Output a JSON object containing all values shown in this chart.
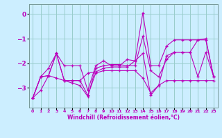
{
  "xlabel": "Windchill (Refroidissement éolien,°C)",
  "background_color": "#cceeff",
  "line_color": "#bb00bb",
  "grid_color": "#99cccc",
  "ylim": [
    -3.8,
    0.4
  ],
  "xlim": [
    -0.5,
    23.5
  ],
  "yticks": [
    0,
    -1,
    -2,
    -3
  ],
  "xticks": [
    0,
    1,
    2,
    3,
    4,
    5,
    6,
    7,
    8,
    9,
    10,
    11,
    12,
    13,
    14,
    15,
    16,
    17,
    18,
    19,
    20,
    21,
    22,
    23
  ],
  "series": [
    [
      -3.4,
      -3.1,
      -2.5,
      -1.6,
      -2.7,
      -2.7,
      -2.7,
      -3.3,
      -2.4,
      -2.3,
      -2.3,
      -2.3,
      -2.3,
      -2.3,
      -2.6,
      -3.2,
      -2.9,
      -2.7,
      -2.7,
      -2.7,
      -2.7,
      -2.7,
      -2.7,
      -2.7
    ],
    [
      -3.4,
      -2.55,
      -2.5,
      -2.6,
      -2.7,
      -2.8,
      -2.9,
      -3.35,
      -2.2,
      -2.1,
      -2.05,
      -2.05,
      -2.1,
      -2.1,
      -0.9,
      -2.3,
      -2.55,
      -1.85,
      -1.55,
      -1.55,
      -1.55,
      -2.55,
      -1.55,
      -2.55
    ],
    [
      -3.4,
      -2.55,
      -2.5,
      -1.6,
      -2.1,
      -2.1,
      -2.1,
      -3.1,
      -2.1,
      -1.9,
      -2.1,
      -2.1,
      -1.85,
      -1.9,
      0.05,
      -2.1,
      -2.1,
      -1.3,
      -1.05,
      -1.05,
      -1.05,
      -1.05,
      -1.05,
      -2.55
    ],
    [
      -3.4,
      -2.55,
      -2.2,
      -1.6,
      -2.7,
      -2.7,
      -2.7,
      -2.4,
      -2.35,
      -2.2,
      -2.15,
      -2.15,
      -2.15,
      -1.9,
      -1.6,
      -3.3,
      -2.9,
      -1.7,
      -1.55,
      -1.55,
      -1.55,
      -1.05,
      -1.0,
      -2.55
    ]
  ]
}
